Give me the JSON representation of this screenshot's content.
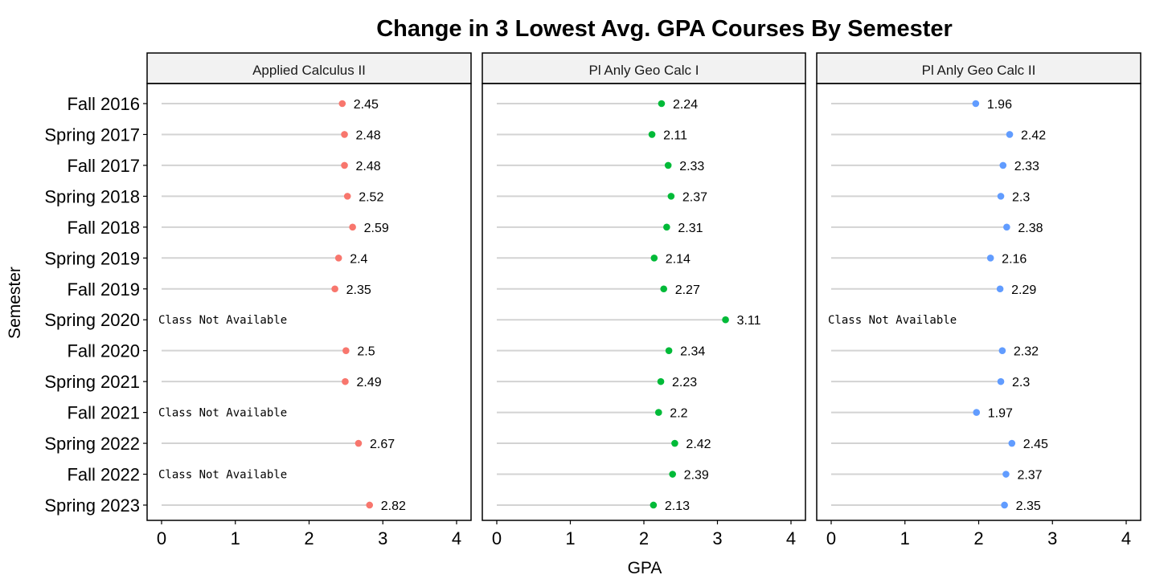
{
  "chart_data": {
    "type": "lollipop",
    "title": "Change in 3 Lowest Avg. GPA Courses By Semester",
    "xlabel": "GPA",
    "ylabel": "Semester",
    "xlim": [
      0,
      4
    ],
    "xticks": [
      0,
      1,
      2,
      3,
      4
    ],
    "grid": false,
    "legend": "none",
    "na_label": "Class Not Available",
    "categories": [
      "Fall 2016",
      "Spring 2017",
      "Fall 2017",
      "Spring 2018",
      "Fall 2018",
      "Spring 2019",
      "Fall 2019",
      "Spring 2020",
      "Fall 2020",
      "Spring 2021",
      "Fall 2021",
      "Spring 2022",
      "Fall 2022",
      "Spring 2023"
    ],
    "series": [
      {
        "name": "Applied Calculus II",
        "color": "#F8766D",
        "values": [
          2.45,
          2.48,
          2.48,
          2.52,
          2.59,
          2.4,
          2.35,
          null,
          2.5,
          2.49,
          null,
          2.67,
          null,
          2.82
        ],
        "labels": [
          "2.45",
          "2.48",
          "2.48",
          "2.52",
          "2.59",
          "2.4",
          "2.35",
          null,
          "2.5",
          "2.49",
          null,
          "2.67",
          null,
          "2.82"
        ]
      },
      {
        "name": "Pl Anly Geo Calc I",
        "color": "#00BA38",
        "values": [
          2.24,
          2.11,
          2.33,
          2.37,
          2.31,
          2.14,
          2.27,
          3.11,
          2.34,
          2.23,
          2.2,
          2.42,
          2.39,
          2.13
        ],
        "labels": [
          "2.24",
          "2.11",
          "2.33",
          "2.37",
          "2.31",
          "2.14",
          "2.27",
          "3.11",
          "2.34",
          "2.23",
          "2.2",
          "2.42",
          "2.39",
          "2.13"
        ]
      },
      {
        "name": "Pl Anly Geo Calc II",
        "color": "#619CFF",
        "values": [
          1.96,
          2.42,
          2.33,
          2.3,
          2.38,
          2.16,
          2.29,
          null,
          2.32,
          2.3,
          1.97,
          2.45,
          2.37,
          2.35
        ],
        "labels": [
          "1.96",
          "2.42",
          "2.33",
          "2.3",
          "2.38",
          "2.16",
          "2.29",
          null,
          "2.32",
          "2.3",
          "1.97",
          "2.45",
          "2.37",
          "2.35"
        ]
      }
    ]
  },
  "colors": {
    "segment": "#d3d3d3",
    "strip_bg": "#f2f2f2",
    "frame": "#000000"
  }
}
